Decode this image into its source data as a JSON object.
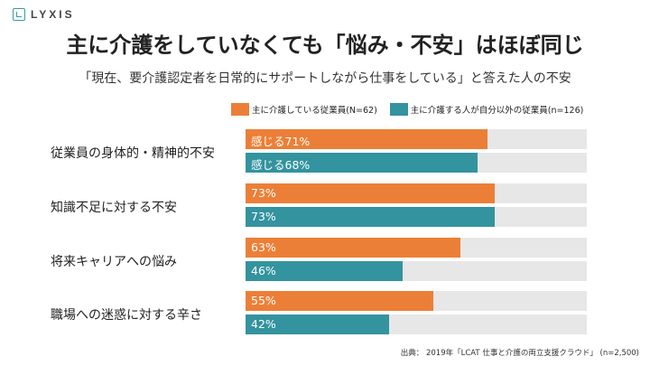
{
  "logo": {
    "text": "LYXIS"
  },
  "title": "主に介護をしていなくても「悩み・不安」はほぼ同じ",
  "subtitle": "「現在、要介護認定者を日常的にサポートしながら仕事をしている」と答えた人の不安",
  "colors": {
    "series1": "#ec7f37",
    "series2": "#33939f",
    "track": "#e8e7e7"
  },
  "chart_data": {
    "type": "bar",
    "orientation": "horizontal",
    "xlim": [
      0,
      100
    ],
    "categories": [
      "従業員の身体的・精神的不安",
      "知識不足に対する不安",
      "将来キャリアへの悩み",
      "職場への迷惑に対する辛さ"
    ],
    "series": [
      {
        "name": "主に介護している従業員(N=62)",
        "values": [
          71,
          73,
          63,
          55
        ],
        "labels": [
          "感じる71%",
          "73%",
          "63%",
          "55%"
        ]
      },
      {
        "name": "主に介護する人が自分以外の従業員(n=126)",
        "values": [
          68,
          73,
          46,
          42
        ],
        "labels": [
          "感じる68%",
          "73%",
          "46%",
          "42%"
        ]
      }
    ],
    "legend_position": "top"
  },
  "source": "出典： 2019年「LCAT 仕事と介護の両立支援クラウド」 (n=2,500)"
}
